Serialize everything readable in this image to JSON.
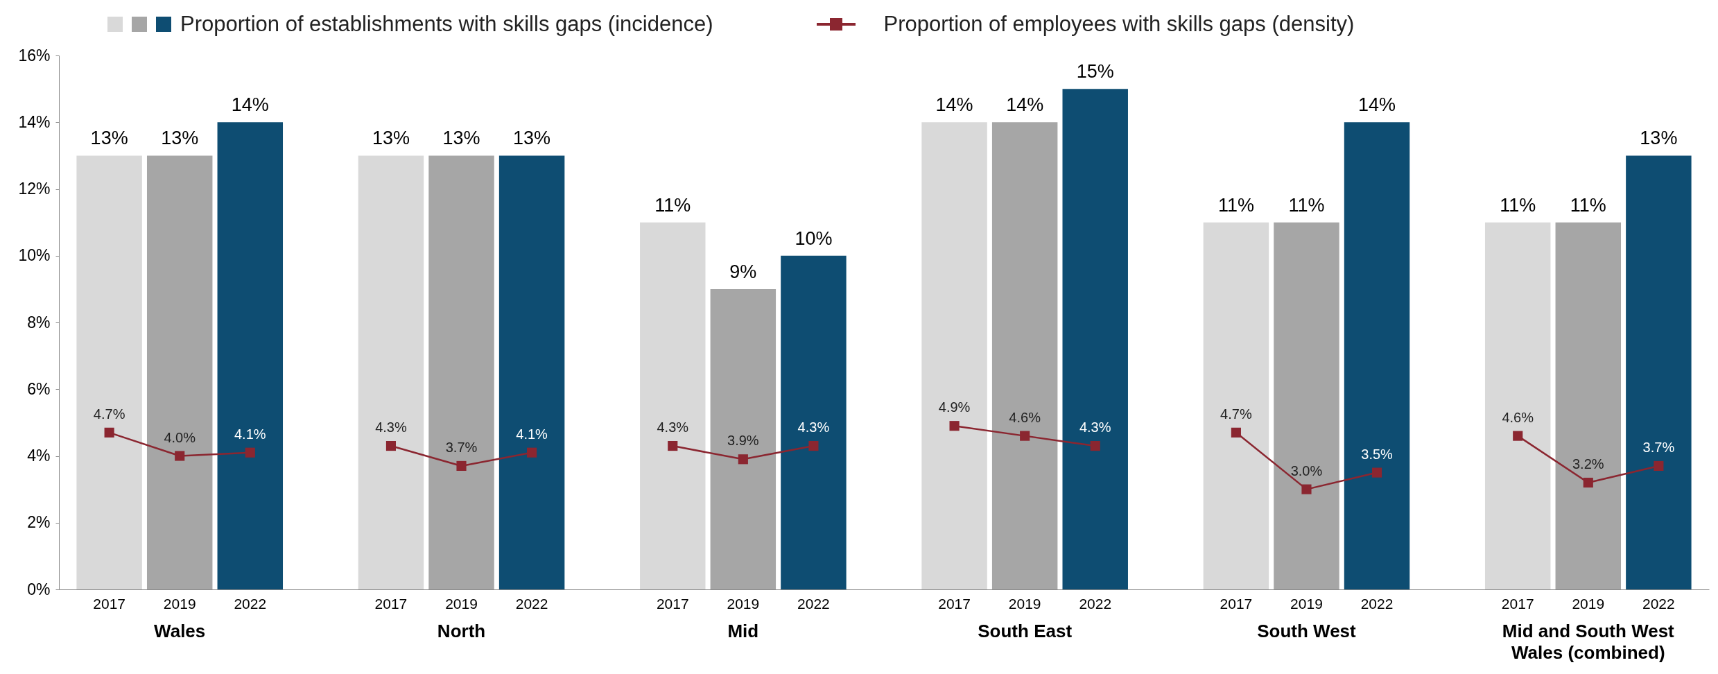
{
  "chart_data": {
    "type": "bar",
    "categories": [
      "2017",
      "2019",
      "2022",
      null,
      "2017",
      "2019",
      "2022",
      null,
      "2017",
      "2019",
      "2022",
      null,
      "2017",
      "2019",
      "2022",
      null,
      "2017",
      "2019",
      "2022",
      null,
      "2017",
      "2019",
      "2022"
    ],
    "series": [
      {
        "name": "Proportion of establishments with skills gaps (incidence)",
        "colors": [
          "#d9d9d9",
          "#a6a6a6",
          "#0e4d72",
          null,
          "#d9d9d9",
          "#a6a6a6",
          "#0e4d72",
          null,
          "#d9d9d9",
          "#a6a6a6",
          "#0e4d72",
          null,
          "#d9d9d9",
          "#a6a6a6",
          "#0e4d72",
          null,
          "#d9d9d9",
          "#a6a6a6",
          "#0e4d72",
          null,
          "#d9d9d9",
          "#a6a6a6",
          "#0e4d72"
        ],
        "values": [
          13,
          13,
          14,
          null,
          13,
          13,
          13,
          null,
          11,
          9,
          10,
          null,
          14,
          14,
          15,
          null,
          11,
          11,
          14,
          null,
          11,
          11,
          13
        ],
        "value_labels": [
          "13%",
          "13%",
          "14%",
          null,
          "13%",
          "13%",
          "13%",
          null,
          "11%",
          "9%",
          "10%",
          null,
          "14%",
          "14%",
          "15%",
          null,
          "11%",
          "11%",
          "14%",
          null,
          "11%",
          "11%",
          "13%"
        ]
      },
      {
        "name": "Proportion of employees with skills gaps (density)",
        "type": "line",
        "color": "#8b2630",
        "values": [
          4.7,
          4.0,
          4.1,
          null,
          4.3,
          3.7,
          4.1,
          null,
          4.3,
          3.9,
          4.3,
          null,
          4.9,
          4.6,
          4.3,
          null,
          4.7,
          3.0,
          3.5,
          null,
          4.6,
          3.2,
          3.7
        ],
        "value_labels": [
          "4.7%",
          "4.0%",
          "4.1%",
          null,
          "4.3%",
          "3.7%",
          "4.1%",
          null,
          "4.3%",
          "3.9%",
          "4.3%",
          null,
          "4.9%",
          "4.6%",
          "4.3%",
          null,
          "4.7%",
          "3.0%",
          "3.5%",
          null,
          "4.6%",
          "3.2%",
          "3.7%"
        ]
      }
    ],
    "ylim": [
      0,
      16
    ],
    "yticks": [
      {
        "value": 0,
        "label": "0%"
      },
      {
        "value": 2,
        "label": "2%"
      },
      {
        "value": 4,
        "label": "4%"
      },
      {
        "value": 6,
        "label": "6%"
      },
      {
        "value": 8,
        "label": "8%"
      },
      {
        "value": 10,
        "label": "10%"
      },
      {
        "value": 12,
        "label": "12%"
      },
      {
        "value": 14,
        "label": "14%"
      },
      {
        "value": 16,
        "label": "16%"
      }
    ],
    "annotations": [
      "Wales",
      "North",
      "Mid",
      "South East",
      "South West",
      "Mid and South West Wales (combined)"
    ],
    "legend": "top",
    "marker": "square",
    "line_style": "solid"
  }
}
